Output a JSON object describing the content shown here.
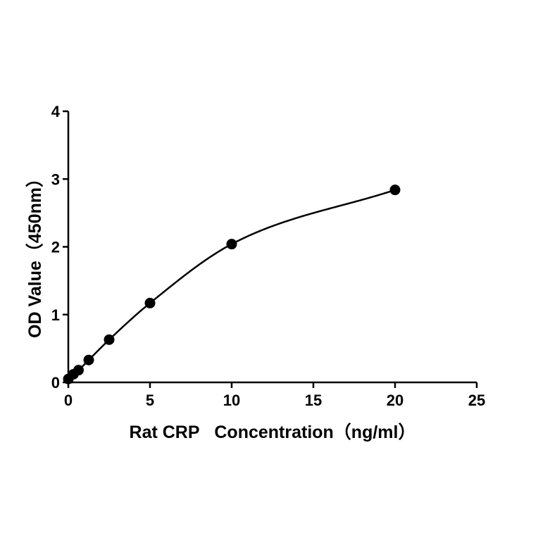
{
  "chart_data": {
    "type": "scatter",
    "title": "",
    "xlabel": "Rat CRP   Concentration（ng/ml）",
    "ylabel": "OD Value（450nm）",
    "xlim": [
      0,
      25
    ],
    "ylim": [
      0,
      4
    ],
    "xticks": [
      "0",
      "5",
      "10",
      "15",
      "20",
      "25"
    ],
    "yticks": [
      "0",
      "1",
      "2",
      "3",
      "4"
    ],
    "grid": false,
    "legend": "none",
    "series": [
      {
        "points": [
          {
            "x": 0,
            "y": 0.05
          },
          {
            "x": 0.3125,
            "y": 0.12
          },
          {
            "x": 0.625,
            "y": 0.18
          },
          {
            "x": 1.25,
            "y": 0.33
          },
          {
            "x": 2.5,
            "y": 0.63
          },
          {
            "x": 5,
            "y": 1.17
          },
          {
            "x": 10,
            "y": 2.04
          },
          {
            "x": 20,
            "y": 2.84
          }
        ],
        "fit": "4-parameter logistic curve",
        "color": "#000000"
      }
    ]
  }
}
